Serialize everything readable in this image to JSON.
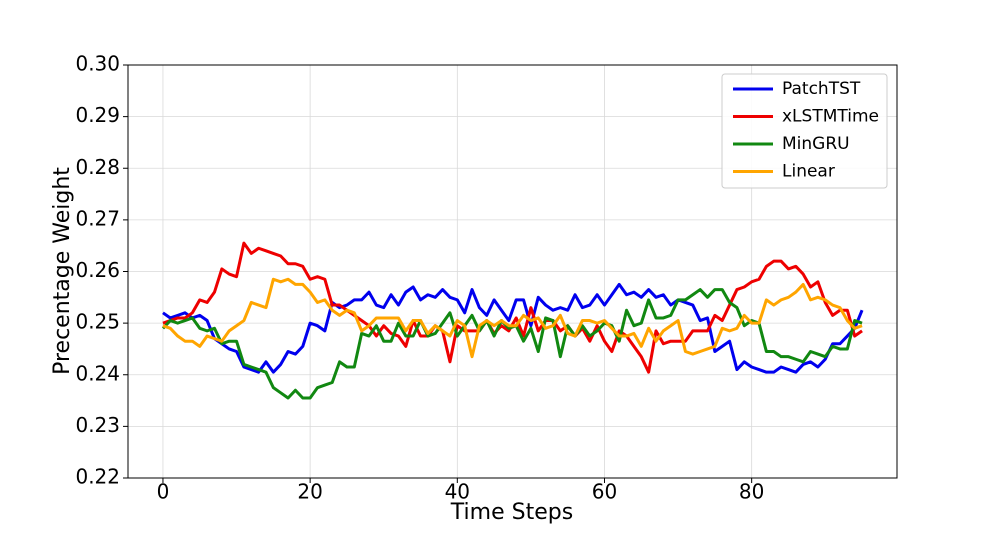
{
  "chart_data": {
    "type": "line",
    "x_label": "Time Steps",
    "y_label": "Precentage Weight",
    "x": [
      0,
      1,
      2,
      3,
      4,
      5,
      6,
      7,
      8,
      9,
      10,
      11,
      12,
      13,
      14,
      15,
      16,
      17,
      18,
      19,
      20,
      21,
      22,
      23,
      24,
      25,
      26,
      27,
      28,
      29,
      30,
      31,
      32,
      33,
      34,
      35,
      36,
      37,
      38,
      39,
      40,
      41,
      42,
      43,
      44,
      45,
      46,
      47,
      48,
      49,
      50,
      51,
      52,
      53,
      54,
      55,
      56,
      57,
      58,
      59,
      60,
      61,
      62,
      63,
      64,
      65,
      66,
      67,
      68,
      69,
      70,
      71,
      72,
      73,
      74,
      75,
      76,
      77,
      78,
      79,
      80,
      81,
      82,
      83,
      84,
      85,
      86,
      87,
      88,
      89,
      90,
      91,
      92,
      93,
      94,
      95
    ],
    "series": [
      {
        "name": "PatchTST",
        "color": "#0000ee",
        "values": [
          0.252,
          0.251,
          0.2515,
          0.252,
          0.251,
          0.2515,
          0.2505,
          0.247,
          0.246,
          0.245,
          0.2445,
          0.2415,
          0.241,
          0.2405,
          0.2425,
          0.2405,
          0.242,
          0.2445,
          0.244,
          0.2455,
          0.25,
          0.2495,
          0.2485,
          0.254,
          0.253,
          0.2535,
          0.2545,
          0.2545,
          0.256,
          0.2535,
          0.253,
          0.2555,
          0.2535,
          0.256,
          0.257,
          0.2545,
          0.2555,
          0.255,
          0.2565,
          0.255,
          0.2545,
          0.252,
          0.2565,
          0.253,
          0.2515,
          0.2545,
          0.2525,
          0.2505,
          0.2545,
          0.2545,
          0.2495,
          0.255,
          0.2535,
          0.2525,
          0.253,
          0.2525,
          0.2555,
          0.253,
          0.2535,
          0.2555,
          0.2535,
          0.2555,
          0.2575,
          0.2555,
          0.256,
          0.255,
          0.2565,
          0.255,
          0.2555,
          0.2535,
          0.2545,
          0.254,
          0.2535,
          0.2505,
          0.251,
          0.2445,
          0.2455,
          0.2465,
          0.241,
          0.2425,
          0.2415,
          0.241,
          0.2405,
          0.2405,
          0.2415,
          0.241,
          0.2405,
          0.242,
          0.2425,
          0.2415,
          0.243,
          0.246,
          0.246,
          0.2475,
          0.249,
          0.2525
        ]
      },
      {
        "name": "xLSTMTime",
        "color": "#ee0000",
        "values": [
          0.25,
          0.2505,
          0.251,
          0.251,
          0.252,
          0.2545,
          0.254,
          0.256,
          0.2605,
          0.2595,
          0.259,
          0.2655,
          0.2635,
          0.2645,
          0.264,
          0.2635,
          0.263,
          0.2615,
          0.2615,
          0.261,
          0.2585,
          0.259,
          0.2585,
          0.2535,
          0.2535,
          0.2525,
          0.2515,
          0.2505,
          0.2495,
          0.2475,
          0.2495,
          0.248,
          0.2475,
          0.2455,
          0.2505,
          0.2475,
          0.2475,
          0.2495,
          0.2485,
          0.2425,
          0.2495,
          0.2485,
          0.2485,
          0.2485,
          0.2505,
          0.248,
          0.2495,
          0.2485,
          0.251,
          0.2475,
          0.253,
          0.2485,
          0.2505,
          0.2505,
          0.2485,
          0.2495,
          0.2475,
          0.249,
          0.2465,
          0.2495,
          0.2465,
          0.2445,
          0.2485,
          0.2475,
          0.2455,
          0.2435,
          0.2405,
          0.2485,
          0.246,
          0.2465,
          0.2465,
          0.2465,
          0.2485,
          0.2485,
          0.2485,
          0.2515,
          0.2505,
          0.2535,
          0.2565,
          0.257,
          0.258,
          0.2585,
          0.261,
          0.262,
          0.262,
          0.2605,
          0.261,
          0.2595,
          0.257,
          0.258,
          0.254,
          0.2515,
          0.2525,
          0.2525,
          0.2475,
          0.2485
        ]
      },
      {
        "name": "MinGRU",
        "color": "#118811",
        "values": [
          0.249,
          0.2505,
          0.25,
          0.2505,
          0.251,
          0.249,
          0.2485,
          0.249,
          0.246,
          0.2465,
          0.2465,
          0.242,
          0.2415,
          0.241,
          0.2405,
          0.2375,
          0.2365,
          0.2355,
          0.237,
          0.2355,
          0.2355,
          0.2375,
          0.238,
          0.2385,
          0.2425,
          0.2415,
          0.2415,
          0.248,
          0.2475,
          0.2495,
          0.2465,
          0.2465,
          0.25,
          0.2475,
          0.2475,
          0.2505,
          0.2475,
          0.248,
          0.25,
          0.252,
          0.2475,
          0.2495,
          0.2515,
          0.2485,
          0.2505,
          0.2475,
          0.2505,
          0.249,
          0.2495,
          0.2465,
          0.249,
          0.2445,
          0.251,
          0.2505,
          0.2435,
          0.2495,
          0.2475,
          0.2495,
          0.2475,
          0.2485,
          0.25,
          0.2495,
          0.2465,
          0.2525,
          0.2495,
          0.25,
          0.2545,
          0.251,
          0.251,
          0.2515,
          0.2545,
          0.2545,
          0.2555,
          0.2565,
          0.255,
          0.2565,
          0.2565,
          0.254,
          0.253,
          0.2495,
          0.2505,
          0.25,
          0.2445,
          0.2445,
          0.2435,
          0.2435,
          0.243,
          0.2425,
          0.2445,
          0.244,
          0.2435,
          0.2455,
          0.245,
          0.245,
          0.2505,
          0.25
        ]
      },
      {
        "name": "Linear",
        "color": "#ffa500",
        "values": [
          0.2495,
          0.249,
          0.2475,
          0.2465,
          0.2465,
          0.2455,
          0.2475,
          0.247,
          0.2465,
          0.2485,
          0.2495,
          0.2505,
          0.254,
          0.2535,
          0.253,
          0.2585,
          0.258,
          0.2585,
          0.2575,
          0.2575,
          0.256,
          0.254,
          0.2545,
          0.2525,
          0.2515,
          0.2525,
          0.252,
          0.2485,
          0.2495,
          0.251,
          0.251,
          0.251,
          0.251,
          0.2485,
          0.2505,
          0.2505,
          0.248,
          0.2495,
          0.2485,
          0.2475,
          0.2505,
          0.2495,
          0.2435,
          0.2495,
          0.2505,
          0.2495,
          0.2505,
          0.2495,
          0.2495,
          0.2515,
          0.2505,
          0.251,
          0.249,
          0.2495,
          0.2515,
          0.248,
          0.2475,
          0.2505,
          0.2505,
          0.25,
          0.2505,
          0.249,
          0.2475,
          0.2475,
          0.248,
          0.2455,
          0.249,
          0.2465,
          0.2485,
          0.2495,
          0.2505,
          0.2445,
          0.244,
          0.2445,
          0.245,
          0.2455,
          0.249,
          0.2485,
          0.249,
          0.2515,
          0.25,
          0.25,
          0.2545,
          0.2535,
          0.2545,
          0.255,
          0.256,
          0.2575,
          0.2545,
          0.255,
          0.2545,
          0.2535,
          0.253,
          0.2505,
          0.249,
          0.2495
        ]
      }
    ],
    "xlim": [
      -4.75,
      99.75
    ],
    "xticks": [
      0,
      20,
      40,
      60,
      80
    ],
    "ylim": [
      0.22,
      0.3
    ],
    "yticks": [
      0.22,
      0.23,
      0.24,
      0.25,
      0.26,
      0.27,
      0.28,
      0.29,
      {
        "value": 0.3,
        "label": "0.30"
      }
    ],
    "grid": true,
    "legend": "upper right"
  }
}
